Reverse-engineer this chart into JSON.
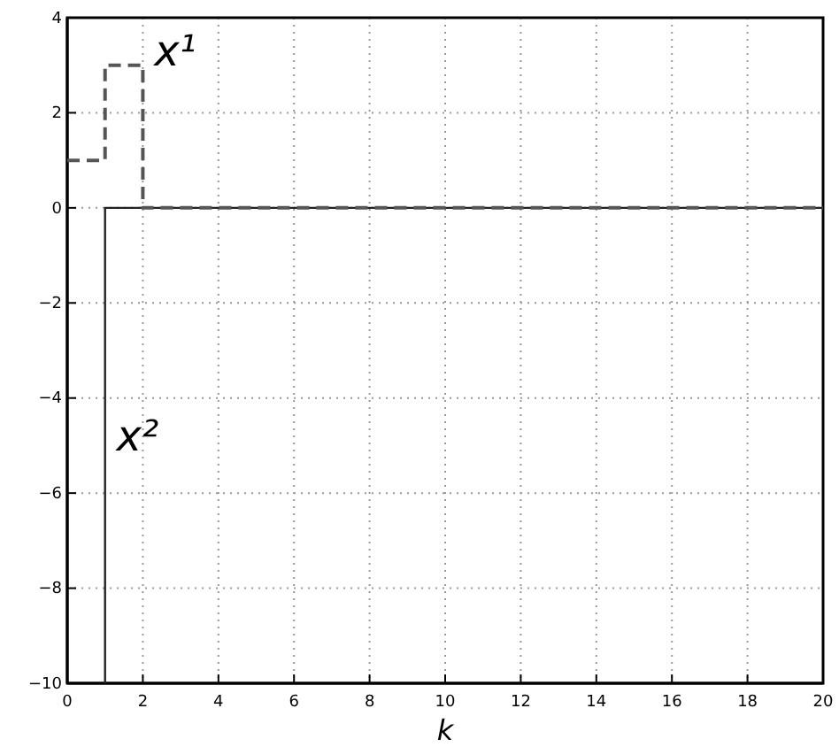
{
  "chart_data": {
    "type": "line",
    "xlabel": "k",
    "xlim": [
      0,
      20
    ],
    "xticks": [
      0,
      2,
      4,
      6,
      8,
      10,
      12,
      14,
      16,
      18,
      20
    ],
    "ylim": [
      -10,
      4
    ],
    "yticks": [
      -10,
      -8,
      -6,
      -4,
      -2,
      0,
      2,
      4
    ],
    "grid": true,
    "marker": "none",
    "series": [
      {
        "name": "x¹",
        "color": "#555555",
        "line_style": "dashed",
        "x": [
          0,
          1,
          1,
          2,
          2,
          20
        ],
        "values": [
          1,
          1,
          3,
          3,
          0,
          0
        ]
      },
      {
        "name": "x²",
        "color": "#222222",
        "line_style": "solid",
        "x": [
          1,
          1,
          20
        ],
        "values": [
          -10,
          0,
          0
        ]
      }
    ]
  }
}
